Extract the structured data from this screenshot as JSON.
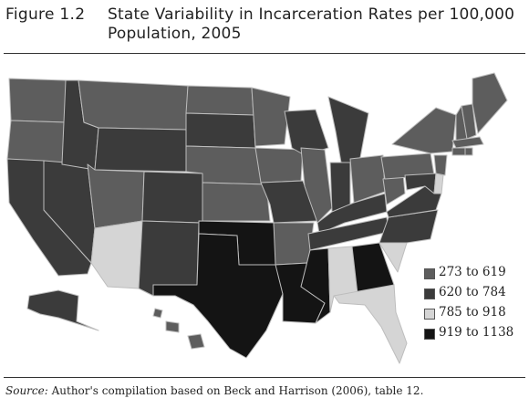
{
  "figure": {
    "label": "Figure 1.2",
    "title": "State Variability in Incarceration Rates per 100,000 Population, 2005"
  },
  "legend": {
    "items": [
      {
        "label": "273 to 619",
        "color": "#5d5d5d"
      },
      {
        "label": "620 to 784",
        "color": "#3b3b3b"
      },
      {
        "label": "785 to 918",
        "color": "#d5d5d5"
      },
      {
        "label": "919 to 1138",
        "color": "#141414"
      }
    ]
  },
  "map": {
    "region": "United States",
    "states": {
      "WA": "273 to 619",
      "OR": "273 to 619",
      "MT": "273 to 619",
      "ND": "273 to 619",
      "MN": "273 to 619",
      "UT": "273 to 619",
      "NE": "273 to 619",
      "KS": "273 to 619",
      "IA": "273 to 619",
      "IL": "273 to 619",
      "AR": "273 to 619",
      "WV": "273 to 619",
      "OH": "273 to 619",
      "PA": "273 to 619",
      "NY": "273 to 619",
      "VT": "273 to 619",
      "NH": "273 to 619",
      "ME": "273 to 619",
      "MA": "273 to 619",
      "CT": "273 to 619",
      "RI": "273 to 619",
      "NJ": "273 to 619",
      "HI": "273 to 619",
      "CA": "620 to 784",
      "NV": "620 to 784",
      "ID": "620 to 784",
      "WY": "620 to 784",
      "CO": "620 to 784",
      "NM": "620 to 784",
      "SD": "620 to 784",
      "MO": "620 to 784",
      "WI": "620 to 784",
      "MI": "620 to 784",
      "IN": "620 to 784",
      "KY": "620 to 784",
      "TN": "620 to 784",
      "VA": "620 to 784",
      "NC": "620 to 784",
      "MD": "620 to 784",
      "AK": "620 to 784",
      "AZ": "785 to 918",
      "AL": "785 to 918",
      "SC": "785 to 918",
      "FL": "785 to 918",
      "DE": "785 to 918",
      "TX": "919 to 1138",
      "OK": "919 to 1138",
      "LA": "919 to 1138",
      "MS": "919 to 1138",
      "GA": "919 to 1138"
    }
  },
  "source": {
    "label": "Source:",
    "text": " Author's compilation based on Beck and Harrison (2006), table 12."
  }
}
